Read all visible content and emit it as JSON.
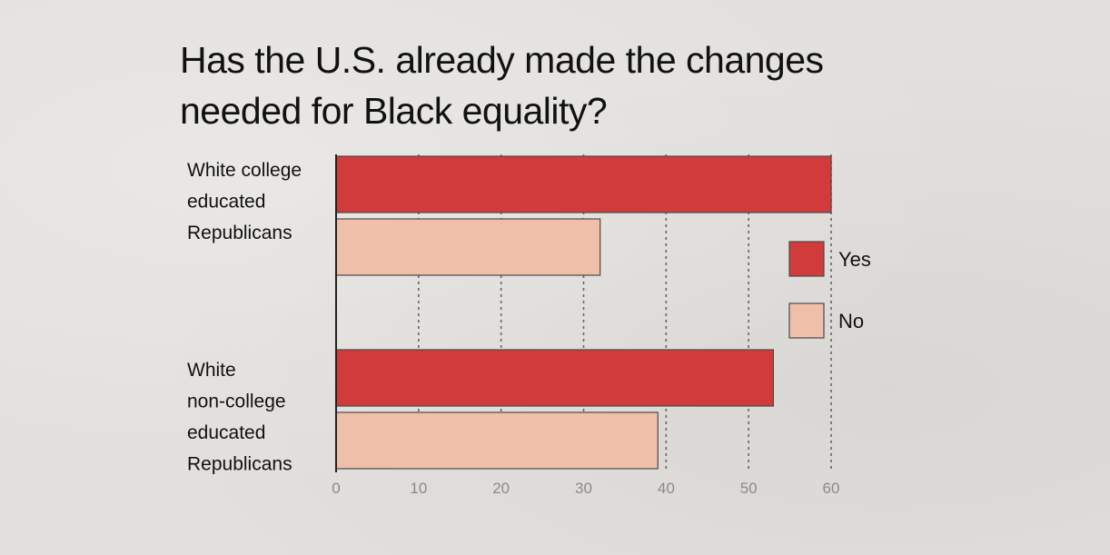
{
  "title_line1": "Has the U.S. already made the changes",
  "title_line2": "needed for Black equality?",
  "chart_data": {
    "type": "bar",
    "orientation": "horizontal",
    "title": "Has the U.S. already made the changes needed for Black equality?",
    "categories": [
      [
        "White college",
        "educated",
        "Republicans"
      ],
      [
        "White",
        "non-college",
        "educated",
        "Republicans"
      ]
    ],
    "series": [
      {
        "name": "Yes",
        "values": [
          60,
          53
        ],
        "color": "#d13b3b"
      },
      {
        "name": "No",
        "values": [
          32,
          39
        ],
        "color": "#f0bfa9"
      }
    ],
    "xlim": [
      0,
      60
    ],
    "ticks": [
      0,
      10,
      20,
      30,
      40,
      50,
      60
    ],
    "grid": true,
    "legend_position": "right"
  }
}
